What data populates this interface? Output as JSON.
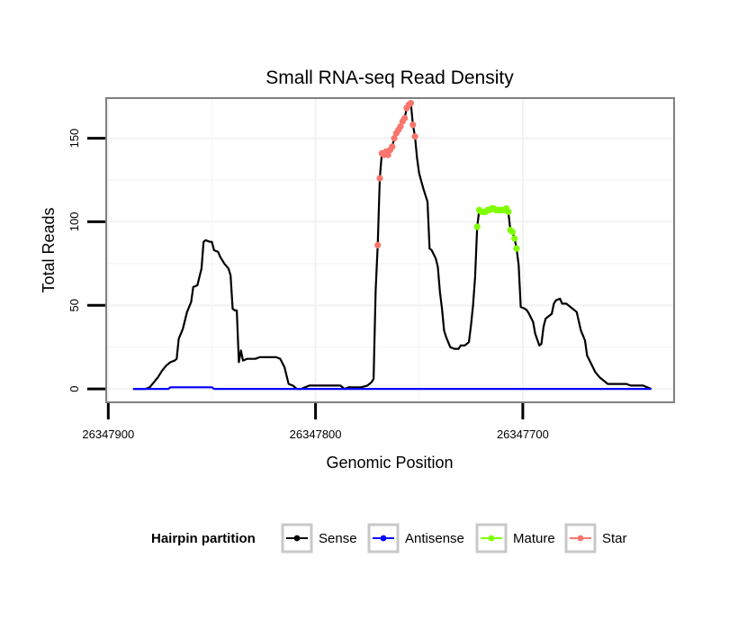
{
  "chart_data": {
    "type": "line",
    "title": "Small RNA-seq Read Density",
    "xlabel": "Genomic Position",
    "ylabel": "Total Reads",
    "xlim": [
      26347901,
      26347627
    ],
    "ylim": [
      -8,
      174
    ],
    "x_reversed": true,
    "grid": true,
    "x_ticks": [
      {
        "value": 26347900,
        "label": "26347900"
      },
      {
        "value": 26347800,
        "label": "26347800"
      },
      {
        "value": 26347700,
        "label": "26347700"
      }
    ],
    "y_ticks": [
      {
        "value": 0,
        "label": "0"
      },
      {
        "value": 50,
        "label": "50"
      },
      {
        "value": 100,
        "label": "100"
      },
      {
        "value": 150,
        "label": "150"
      }
    ],
    "legend": {
      "title": "Hairpin partition",
      "placement": "bottom",
      "entries": [
        {
          "name": "Sense",
          "color": "#000000"
        },
        {
          "name": "Antisense",
          "color": "#0000ff"
        },
        {
          "name": "Mature",
          "color": "#7fff00"
        },
        {
          "name": "Star",
          "color": "#f8766d"
        }
      ]
    },
    "series": [
      {
        "name": "Sense",
        "color": "#000000",
        "markers": false,
        "points": [
          [
            26347888,
            0
          ],
          [
            26347882,
            0
          ],
          [
            26347880,
            1
          ],
          [
            26347878,
            4
          ],
          [
            26347876,
            7
          ],
          [
            26347874,
            11
          ],
          [
            26347872,
            14
          ],
          [
            26347870,
            16
          ],
          [
            26347868,
            17
          ],
          [
            26347867,
            18
          ],
          [
            26347866,
            30
          ],
          [
            26347864,
            36
          ],
          [
            26347862,
            46
          ],
          [
            26347860,
            52
          ],
          [
            26347859,
            61
          ],
          [
            26347857,
            62
          ],
          [
            26347855,
            72
          ],
          [
            26347854,
            88
          ],
          [
            26347853,
            89
          ],
          [
            26347851,
            88
          ],
          [
            26347850,
            88
          ],
          [
            26347849,
            83
          ],
          [
            26347847,
            82
          ],
          [
            26347846,
            79
          ],
          [
            26347844,
            75
          ],
          [
            26347842,
            72
          ],
          [
            26347841,
            68
          ],
          [
            26347840,
            48
          ],
          [
            26347839,
            47
          ],
          [
            26347838,
            47
          ],
          [
            26347837,
            16
          ],
          [
            26347836,
            23
          ],
          [
            26347835,
            17
          ],
          [
            26347833,
            18
          ],
          [
            26347831,
            18
          ],
          [
            26347829,
            18
          ],
          [
            26347827,
            19
          ],
          [
            26347825,
            19
          ],
          [
            26347822,
            19
          ],
          [
            26347819,
            19
          ],
          [
            26347817,
            18
          ],
          [
            26347815,
            13
          ],
          [
            26347813,
            3
          ],
          [
            26347811,
            2
          ],
          [
            26347809,
            0
          ],
          [
            26347807,
            0
          ],
          [
            26347805,
            1
          ],
          [
            26347803,
            2
          ],
          [
            26347800,
            2
          ],
          [
            26347795,
            2
          ],
          [
            26347790,
            2
          ],
          [
            26347788,
            2
          ],
          [
            26347786,
            0
          ],
          [
            26347784,
            1
          ],
          [
            26347778,
            1
          ],
          [
            26347775,
            2
          ],
          [
            26347773,
            4
          ],
          [
            26347772,
            6
          ],
          [
            26347771,
            59
          ],
          [
            26347770,
            86
          ],
          [
            26347769,
            126
          ],
          [
            26347768,
            141
          ],
          [
            26347767,
            140
          ],
          [
            26347766,
            142
          ],
          [
            26347765,
            140
          ],
          [
            26347764,
            143
          ],
          [
            26347763,
            145
          ],
          [
            26347762,
            150
          ],
          [
            26347761,
            153
          ],
          [
            26347760,
            155
          ],
          [
            26347759,
            157
          ],
          [
            26347758,
            160
          ],
          [
            26347757,
            162
          ],
          [
            26347756,
            168
          ],
          [
            26347755,
            170
          ],
          [
            26347754,
            171
          ],
          [
            26347753,
            158
          ],
          [
            26347752,
            151
          ],
          [
            26347751,
            138
          ],
          [
            26347750,
            129
          ],
          [
            26347748,
            120
          ],
          [
            26347746,
            112
          ],
          [
            26347745,
            84
          ],
          [
            26347744,
            83
          ],
          [
            26347742,
            78
          ],
          [
            26347741,
            73
          ],
          [
            26347740,
            58
          ],
          [
            26347739,
            48
          ],
          [
            26347738,
            35
          ],
          [
            26347737,
            31
          ],
          [
            26347735,
            25
          ],
          [
            26347733,
            24
          ],
          [
            26347731,
            24
          ],
          [
            26347730,
            26
          ],
          [
            26347728,
            26
          ],
          [
            26347726,
            28
          ],
          [
            26347725,
            38
          ],
          [
            26347724,
            50
          ],
          [
            26347723,
            67
          ],
          [
            26347722,
            97
          ],
          [
            26347721,
            107
          ],
          [
            26347720,
            106
          ],
          [
            26347718,
            106
          ],
          [
            26347716,
            107
          ],
          [
            26347714,
            108
          ],
          [
            26347712,
            107
          ],
          [
            26347710,
            107
          ],
          [
            26347708,
            108
          ],
          [
            26347707,
            106
          ],
          [
            26347706,
            95
          ],
          [
            26347705,
            94
          ],
          [
            26347704,
            90
          ],
          [
            26347703,
            84
          ],
          [
            26347702,
            74
          ],
          [
            26347701,
            49
          ],
          [
            26347699,
            48
          ],
          [
            26347698,
            47
          ],
          [
            26347697,
            45
          ],
          [
            26347695,
            40
          ],
          [
            26347694,
            33
          ],
          [
            26347692,
            26
          ],
          [
            26347691,
            27
          ],
          [
            26347690,
            37
          ],
          [
            26347689,
            42
          ],
          [
            26347688,
            43
          ],
          [
            26347686,
            45
          ],
          [
            26347685,
            51
          ],
          [
            26347684,
            53
          ],
          [
            26347682,
            54
          ],
          [
            26347681,
            51
          ],
          [
            26347679,
            51
          ],
          [
            26347677,
            49
          ],
          [
            26347676,
            48
          ],
          [
            26347674,
            46
          ],
          [
            26347672,
            35
          ],
          [
            26347670,
            29
          ],
          [
            26347669,
            20
          ],
          [
            26347667,
            15
          ],
          [
            26347665,
            10
          ],
          [
            26347663,
            7
          ],
          [
            26347661,
            5
          ],
          [
            26347659,
            3
          ],
          [
            26347653,
            3
          ],
          [
            26347650,
            3
          ],
          [
            26347648,
            2
          ],
          [
            26347644,
            2
          ],
          [
            26347642,
            2
          ],
          [
            26347640,
            1
          ],
          [
            26347638,
            0
          ]
        ]
      },
      {
        "name": "Antisense",
        "color": "#0000ff",
        "markers": false,
        "points": [
          [
            26347888,
            0
          ],
          [
            26347871,
            0
          ],
          [
            26347870,
            1
          ],
          [
            26347850,
            1
          ],
          [
            26347849,
            0
          ],
          [
            26347638,
            0
          ]
        ]
      },
      {
        "name": "Mature",
        "color": "#7fff00",
        "markers": true,
        "points": [
          [
            26347722,
            97
          ],
          [
            26347721,
            107
          ],
          [
            26347720,
            106
          ],
          [
            26347719,
            106
          ],
          [
            26347718,
            106
          ],
          [
            26347717,
            107
          ],
          [
            26347716,
            107
          ],
          [
            26347715,
            108
          ],
          [
            26347714,
            108
          ],
          [
            26347713,
            107
          ],
          [
            26347712,
            107
          ],
          [
            26347711,
            107
          ],
          [
            26347710,
            107
          ],
          [
            26347709,
            107
          ],
          [
            26347708,
            108
          ],
          [
            26347707,
            106
          ],
          [
            26347706,
            95
          ],
          [
            26347705,
            94
          ],
          [
            26347704,
            90
          ],
          [
            26347703,
            84
          ]
        ]
      },
      {
        "name": "Star",
        "color": "#f8766d",
        "markers": true,
        "points": [
          [
            26347770,
            86
          ],
          [
            26347769,
            126
          ],
          [
            26347768,
            141
          ],
          [
            26347767,
            140
          ],
          [
            26347766,
            142
          ],
          [
            26347765,
            140
          ],
          [
            26347764,
            143
          ],
          [
            26347763,
            145
          ],
          [
            26347762,
            150
          ],
          [
            26347761,
            153
          ],
          [
            26347760,
            155
          ],
          [
            26347759,
            157
          ],
          [
            26347758,
            160
          ],
          [
            26347757,
            162
          ],
          [
            26347756,
            168
          ],
          [
            26347755,
            170
          ],
          [
            26347754,
            171
          ],
          [
            26347753,
            158
          ],
          [
            26347752,
            151
          ]
        ]
      }
    ]
  }
}
